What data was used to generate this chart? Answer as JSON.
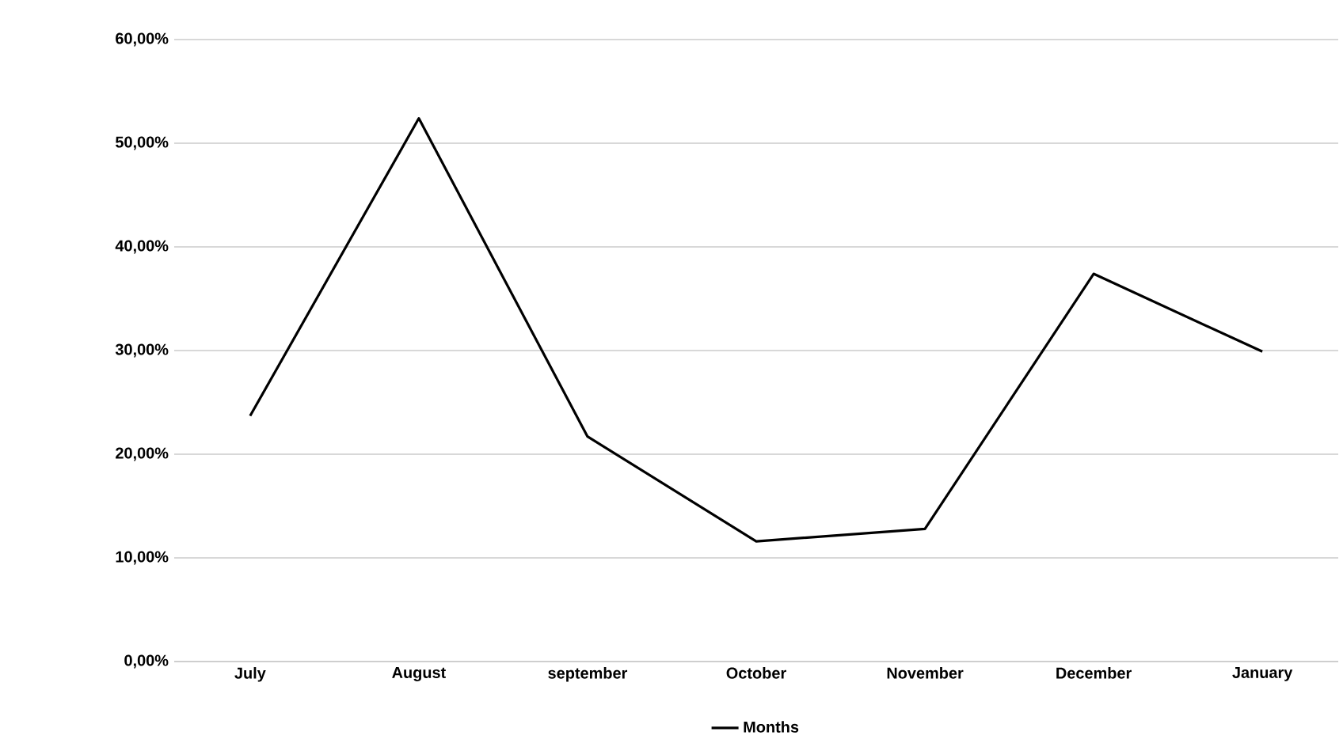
{
  "chart_data": {
    "type": "line",
    "categories": [
      "July",
      "August",
      "september",
      "October",
      "November",
      "December",
      "January"
    ],
    "series": [
      {
        "name": "Months",
        "color": "#000000",
        "values": [
          23.7,
          52.4,
          21.7,
          11.6,
          12.8,
          37.4,
          29.9
        ]
      }
    ],
    "ylim": [
      0,
      60
    ],
    "yticks": [
      {
        "value": 0,
        "label": "0,00%"
      },
      {
        "value": 10,
        "label": "10,00%"
      },
      {
        "value": 20,
        "label": "20,00%"
      },
      {
        "value": 30,
        "label": "30,00%"
      },
      {
        "value": 40,
        "label": "40,00%"
      },
      {
        "value": 50,
        "label": "50,00%"
      },
      {
        "value": 60,
        "label": "60,00%"
      }
    ],
    "grid": "y",
    "legend": "bottom",
    "marker": "none",
    "line_style": "solid"
  }
}
